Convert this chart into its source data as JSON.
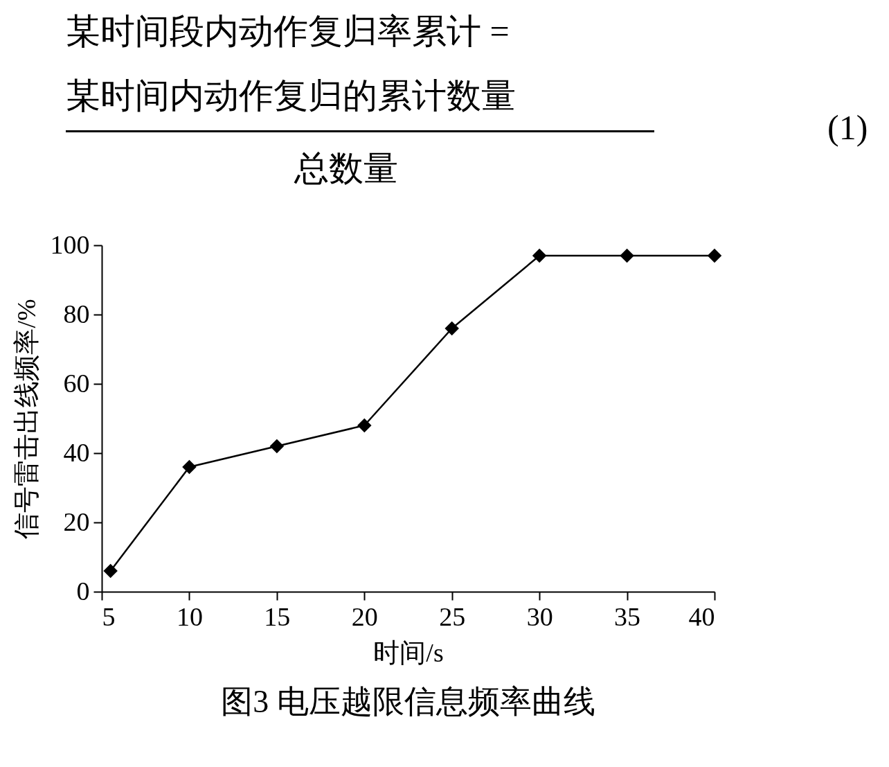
{
  "chart_data": {
    "type": "line",
    "title": "图3 电压越限信息频率曲线",
    "xlabel": "时间/s",
    "ylabel": "信号雷击出线频率/%",
    "annotations": [
      "某时间段内动作复归率累计 =",
      "某时间内动作复归的累计数量",
      "总数量",
      "(1)"
    ],
    "x": [
      5.5,
      10,
      15,
      20,
      25,
      30,
      35,
      40
    ],
    "series": [
      {
        "color": "#000000",
        "values": [
          6,
          36,
          42,
          48,
          76,
          97,
          97,
          97
        ]
      }
    ],
    "xlim": [
      5,
      40
    ],
    "xticks": [
      5,
      10,
      15,
      20,
      25,
      30,
      35,
      40
    ],
    "ylim": [
      0,
      100
    ],
    "yticks": [
      0,
      20,
      40,
      60,
      80,
      100
    ],
    "grid": false,
    "legend": false,
    "marker": "diamond",
    "line_style": "solid"
  }
}
